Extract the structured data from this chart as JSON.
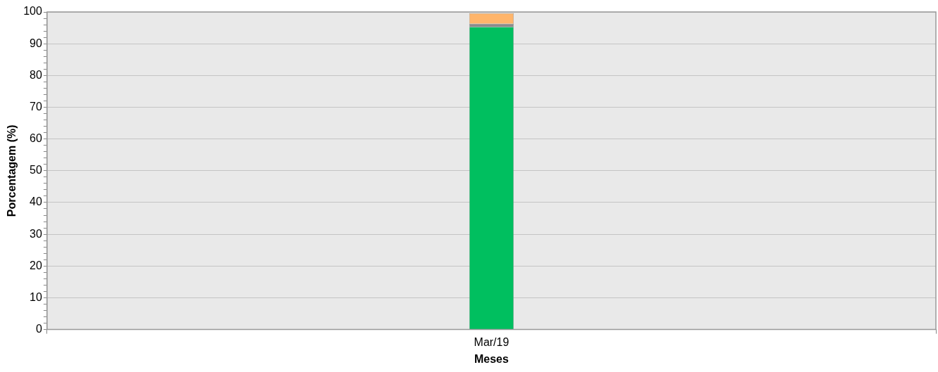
{
  "chart_data": {
    "type": "bar",
    "xlabel": "Meses",
    "ylabel": "Porcentagem (%)",
    "categories": [
      "Mar/19"
    ],
    "stacked": true,
    "grid": "y",
    "legend": false,
    "series": [
      {
        "color": "#00bf5f",
        "values": [
          95.3
        ]
      },
      {
        "color": "#8c8c8c",
        "values": [
          1.0
        ]
      },
      {
        "color": "#ffb56b",
        "values": [
          3.3
        ]
      }
    ],
    "ylim": [
      0,
      100
    ],
    "yticks": [
      0,
      {
        "value": 2,
        "label": null
      },
      {
        "value": 4,
        "label": null
      },
      {
        "value": 6,
        "label": null
      },
      {
        "value": 8,
        "label": null
      },
      10,
      {
        "value": 12,
        "label": null
      },
      {
        "value": 14,
        "label": null
      },
      {
        "value": 16,
        "label": null
      },
      {
        "value": 18,
        "label": null
      },
      20,
      {
        "value": 22,
        "label": null
      },
      {
        "value": 24,
        "label": null
      },
      {
        "value": 26,
        "label": null
      },
      {
        "value": 28,
        "label": null
      },
      30,
      {
        "value": 32,
        "label": null
      },
      {
        "value": 34,
        "label": null
      },
      {
        "value": 36,
        "label": null
      },
      {
        "value": 38,
        "label": null
      },
      40,
      {
        "value": 42,
        "label": null
      },
      {
        "value": 44,
        "label": null
      },
      {
        "value": 46,
        "label": null
      },
      {
        "value": 48,
        "label": null
      },
      50,
      {
        "value": 52,
        "label": null
      },
      {
        "value": 54,
        "label": null
      },
      {
        "value": 56,
        "label": null
      },
      {
        "value": 58,
        "label": null
      },
      60,
      {
        "value": 62,
        "label": null
      },
      {
        "value": 64,
        "label": null
      },
      {
        "value": 66,
        "label": null
      },
      {
        "value": 68,
        "label": null
      },
      70,
      {
        "value": 72,
        "label": null
      },
      {
        "value": 74,
        "label": null
      },
      {
        "value": 76,
        "label": null
      },
      {
        "value": 78,
        "label": null
      },
      80,
      {
        "value": 82,
        "label": null
      },
      {
        "value": 84,
        "label": null
      },
      {
        "value": 86,
        "label": null
      },
      {
        "value": 88,
        "label": null
      },
      90,
      {
        "value": 92,
        "label": null
      },
      {
        "value": 94,
        "label": null
      },
      {
        "value": 96,
        "label": null
      },
      {
        "value": 98,
        "label": null
      },
      100
    ]
  }
}
